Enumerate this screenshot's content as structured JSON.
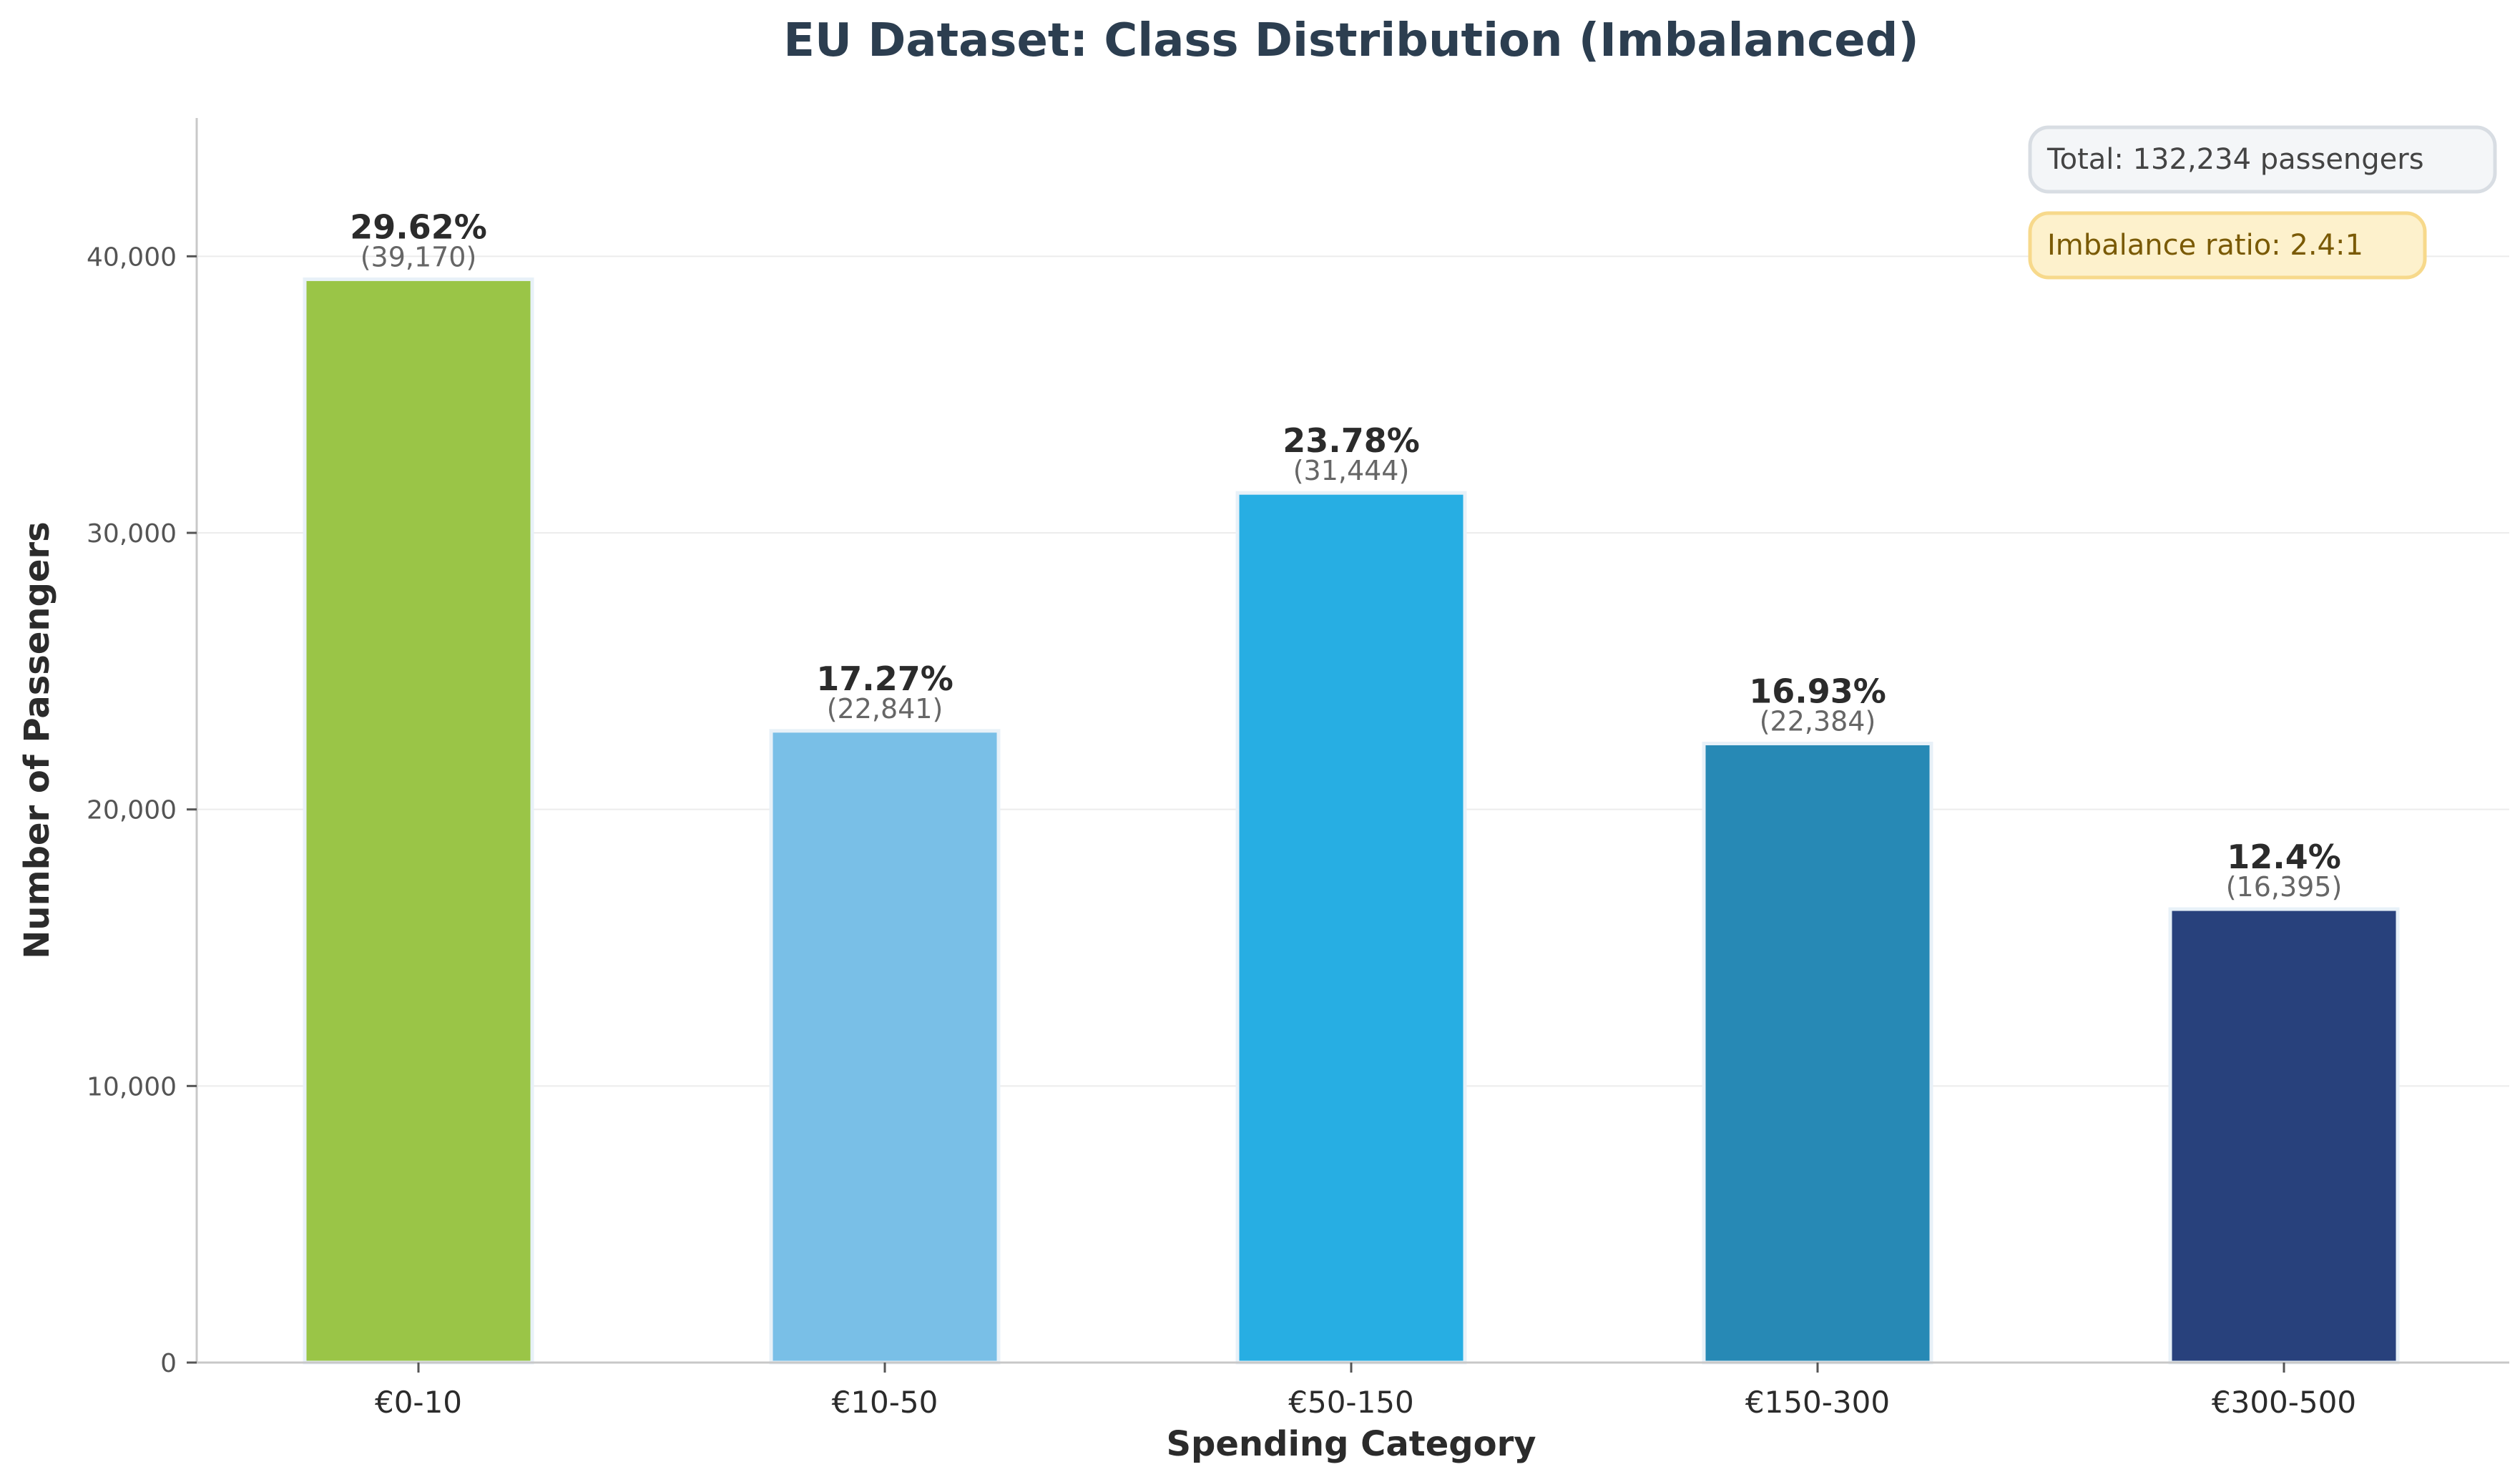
{
  "chart_data": {
    "type": "bar",
    "title": "EU Dataset: Class Distribution (Imbalanced)",
    "xlabel": "Spending Category",
    "ylabel": "Number of Passengers",
    "categories": [
      "€0-10",
      "€10-50",
      "€50-150",
      "€150-300",
      "€300-500"
    ],
    "values": [
      39170,
      22841,
      31444,
      22384,
      16395
    ],
    "value_labels": [
      "(39,170)",
      "(22,841)",
      "(31,444)",
      "(22,384)",
      "(16,395)"
    ],
    "percent_labels": [
      "29.62%",
      "17.27%",
      "23.78%",
      "16.93%",
      "12.4%"
    ],
    "colors": [
      "#9ac547",
      "#79bfe7",
      "#27aee3",
      "#2789b5",
      "#28417c"
    ],
    "ylim": [
      0,
      45000
    ],
    "yticks": [
      0,
      10000,
      20000,
      30000,
      40000
    ],
    "ytick_labels": [
      "0",
      "10,000",
      "20,000",
      "30,000",
      "40,000"
    ],
    "grid": "horizontal",
    "annotations": {
      "total": "Total: 132,234 passengers",
      "imbalance": "Imbalance ratio: 2.4:1"
    }
  }
}
